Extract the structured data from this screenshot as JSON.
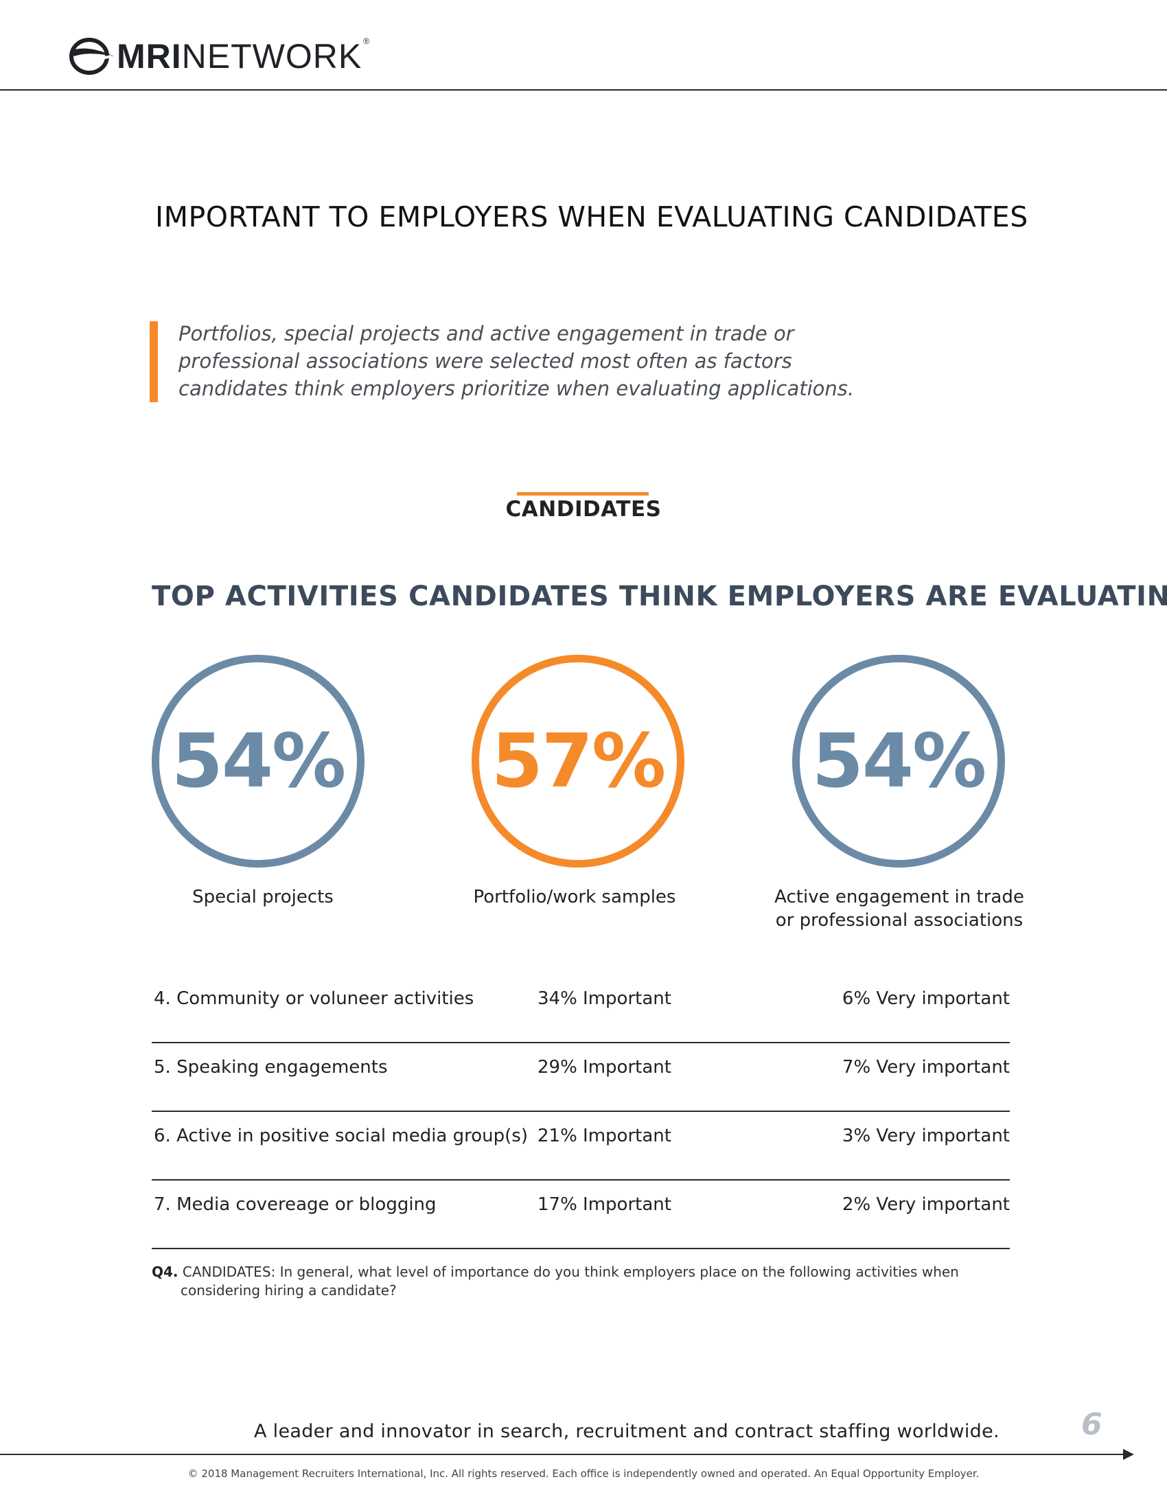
{
  "header": {
    "logo_bold": "MRI",
    "logo_light": "NETWORK",
    "logo_reg": "®"
  },
  "page_title": "IMPORTANT TO EMPLOYERS WHEN EVALUATING CANDIDATES",
  "callout": {
    "lines": [
      "Portfolios, special projects and active engagement in trade or",
      "professional associations were selected most often as factors",
      "candidates think employers prioritize when evaluating applications."
    ]
  },
  "section_label": "CANDIDATES",
  "chart_title": "TOP ACTIVITIES CANDIDATES THINK EMPLOYERS ARE EVALUATING",
  "top_stats": [
    {
      "value": "54%",
      "label_lines": [
        "Special projects"
      ]
    },
    {
      "value": "57%",
      "label_lines": [
        "Portfolio/work samples"
      ]
    },
    {
      "value": "54%",
      "label_lines": [
        "Active engagement in trade",
        "or professional associations"
      ]
    }
  ],
  "rows": [
    {
      "name": "4. Community or voluneer activities",
      "important": "34% Important",
      "very_important": "6% Very important"
    },
    {
      "name": "5. Speaking engagements",
      "important": "29% Important",
      "very_important": "7% Very important"
    },
    {
      "name": "6. Active in positive social media group(s)",
      "important": "21% Important",
      "very_important": "3% Very important"
    },
    {
      "name": "7. Media covereage or blogging",
      "important": "17% Important",
      "very_important": "2% Very important"
    }
  ],
  "question": {
    "number": "Q4.",
    "line1": "CANDIDATES:  In general, what level of importance do you think employers place on the following activities when",
    "line2": "considering hiring a candidate?"
  },
  "footer": {
    "tagline": "A leader and innovator in search, recruitment and contract staffing worldwide.",
    "page_number": "6",
    "copyright": "© 2018 Management Recruiters International, Inc.  All rights reserved.  Each office is independently owned and operated. An Equal Opportunity Employer."
  },
  "colors": {
    "accent": "#f58a2a",
    "blue": "#6b8aa5",
    "title_navy": "#3c4a5c"
  }
}
